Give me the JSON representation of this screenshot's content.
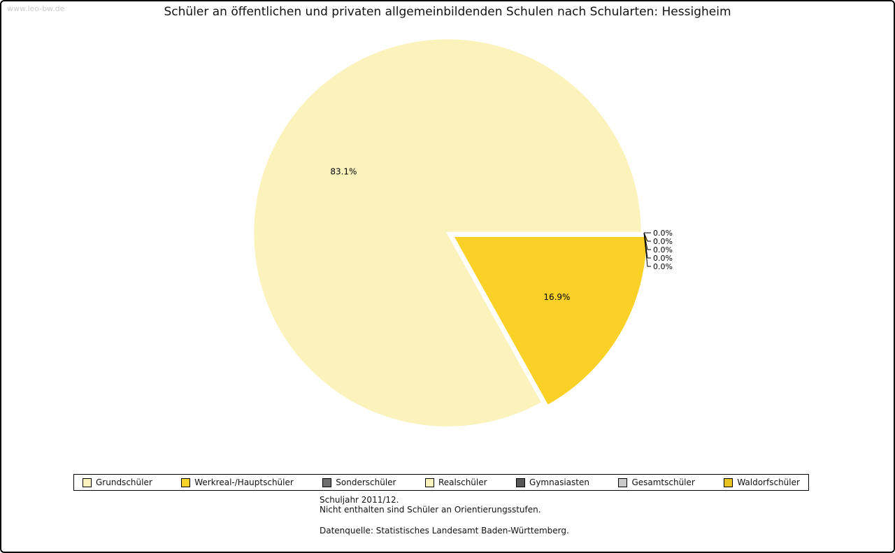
{
  "watermark": "www.leo-bw.de",
  "title": "Schüler an öffentlichen und privaten allgemeinbildenden Schulen nach Schularten: Hessigheim",
  "footnotes": {
    "line1": "Schuljahr 2011/12.",
    "line2": "Nicht enthalten sind Schüler an Orientierungsstufen.",
    "source": "Datenquelle: Statistisches Landesamt Baden-Württemberg."
  },
  "chart_data": {
    "type": "pie",
    "title": "Schüler an öffentlichen und privaten allgemeinbildenden Schulen nach Schularten: Hessigheim",
    "legend_position": "bottom",
    "start_angle_deg": 0,
    "direction": "counterclockwise",
    "slices": [
      {
        "id": "grundschueler",
        "label": "Grundschüler",
        "value": 83.1,
        "pct_label": "83.1%",
        "color": "#FCF2BC",
        "exploded": false
      },
      {
        "id": "werkreal-hauptschueler",
        "label": "Werkreal-/Hauptschüler",
        "value": 16.9,
        "pct_label": "16.9%",
        "color": "#FBD127",
        "exploded": true
      },
      {
        "id": "sonderschueler",
        "label": "Sonderschüler",
        "value": 0.0,
        "pct_label": "0.0%",
        "color": "#6E6E6E",
        "exploded": false
      },
      {
        "id": "realschueler",
        "label": "Realschüler",
        "value": 0.0,
        "pct_label": "0.0%",
        "color": "#FCF2BC",
        "exploded": false
      },
      {
        "id": "gymnasiasten",
        "label": "Gymnasiasten",
        "value": 0.0,
        "pct_label": "0.0%",
        "color": "#575757",
        "exploded": false
      },
      {
        "id": "gesamtschueler",
        "label": "Gesamtschüler",
        "value": 0.0,
        "pct_label": "0.0%",
        "color": "#C9C9C9",
        "exploded": false
      },
      {
        "id": "waldorfschueler",
        "label": "Waldorfschüler",
        "value": 0.0,
        "pct_label": "0.0%",
        "color": "#E9C31F",
        "exploded": false
      }
    ]
  }
}
